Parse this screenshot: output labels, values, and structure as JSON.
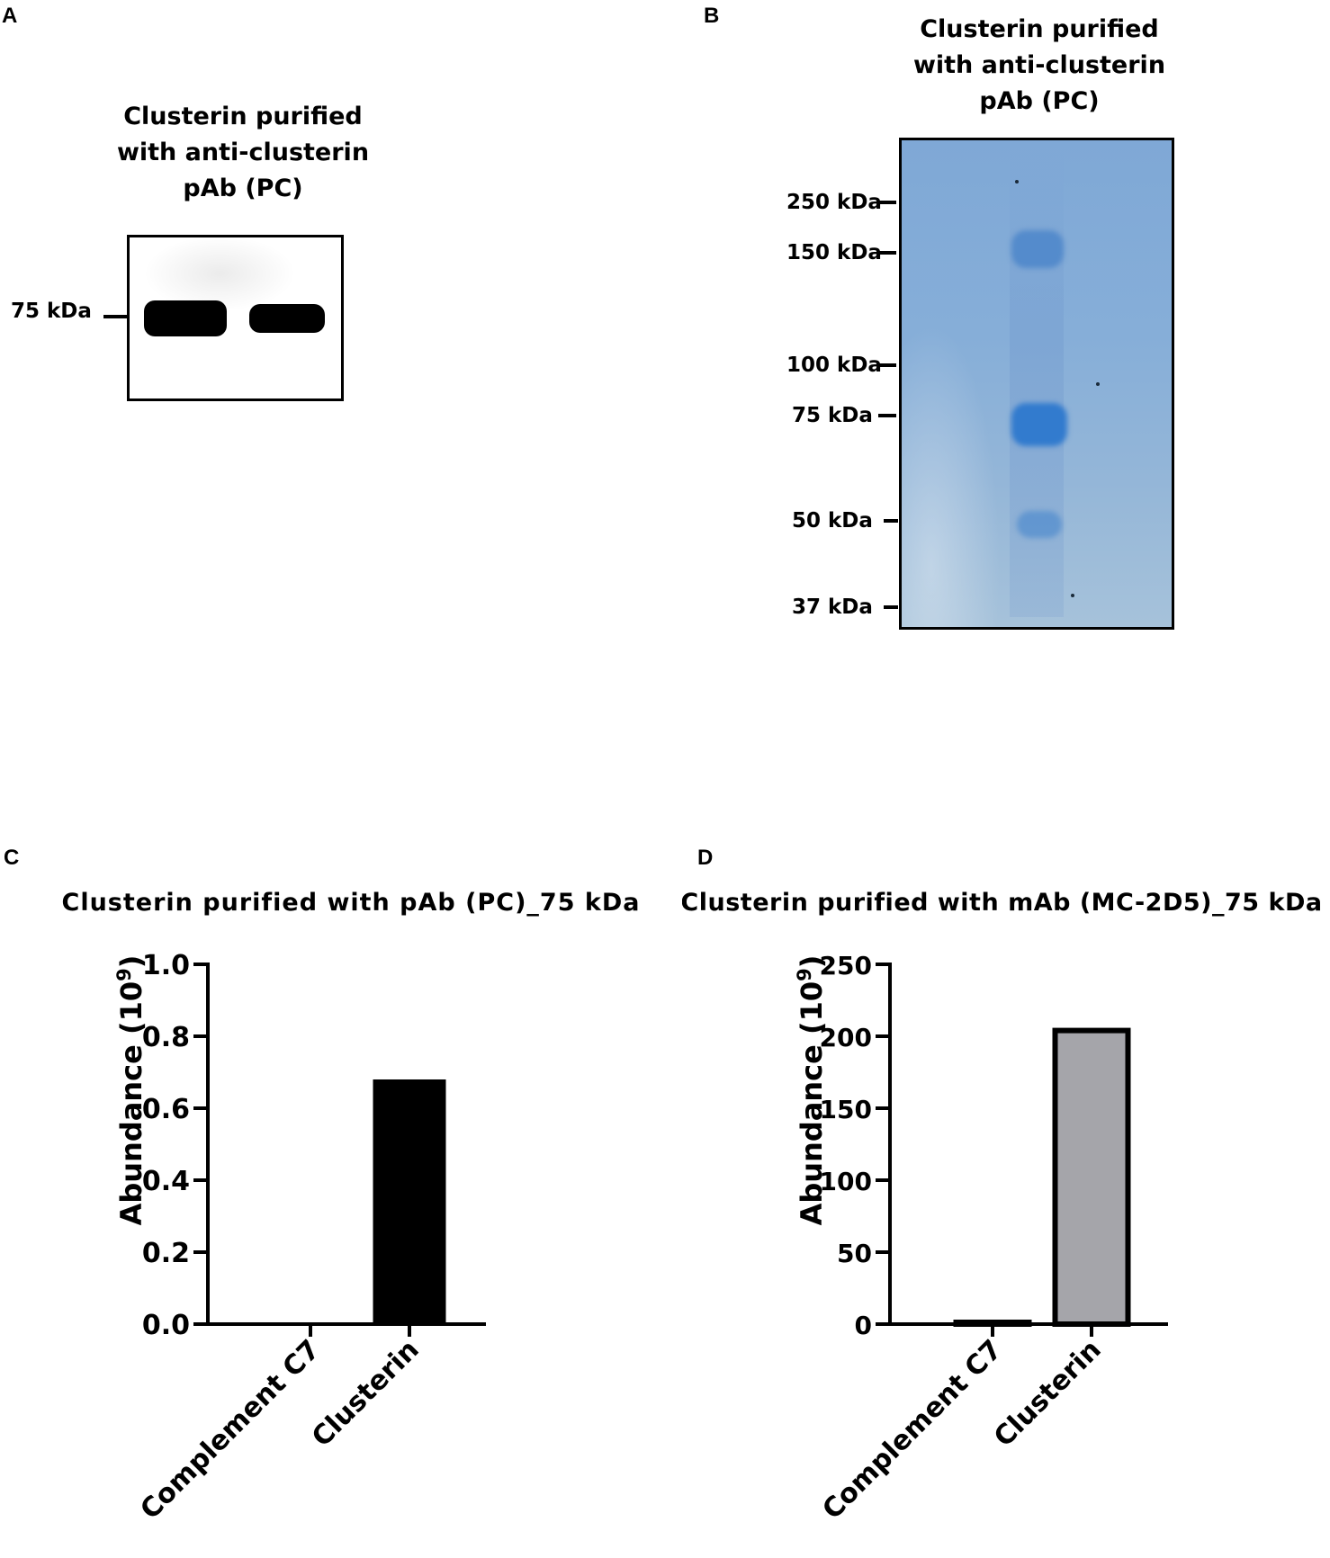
{
  "panels": {
    "a": {
      "letter": "A",
      "title_lines": [
        "Clusterin purified",
        "with anti-clusterin",
        "pAb (PC)"
      ],
      "marker": "75 kDa"
    },
    "b": {
      "letter": "B",
      "title_lines": [
        "Clusterin purified",
        "with anti-clusterin",
        "pAb (PC)"
      ],
      "markers": [
        "250 kDa",
        "150 kDa",
        "100 kDa",
        "75 kDa",
        "50 kDa",
        "37 kDa"
      ],
      "gel_color": "#86aed8",
      "band_color": "#3f86d0"
    },
    "c": {
      "letter": "C"
    },
    "d": {
      "letter": "D"
    }
  },
  "chart_data": [
    {
      "type": "bar",
      "title": "Clusterin purified with pAb (PC)_75 kDa",
      "ylabel": "Abundance (10",
      "ylabel_sup": "9",
      "ylabel_end": ")",
      "categories": [
        "Complement C7",
        "Clusterin"
      ],
      "values": [
        0.005,
        0.68
      ],
      "ylim": [
        0,
        1.0
      ],
      "yticks": [
        "0.0",
        "0.2",
        "0.4",
        "0.6",
        "0.8",
        "1.0"
      ],
      "bar_color": "#000000",
      "grid": false
    },
    {
      "type": "bar",
      "title": "Clusterin purified with mAb (MC-2D5)_75 kDa",
      "ylabel": "Abundance (10",
      "ylabel_sup": "9",
      "ylabel_end": ")",
      "categories": [
        "Complement C7",
        "Clusterin"
      ],
      "values": [
        0.5,
        204
      ],
      "ylim": [
        0,
        250
      ],
      "yticks": [
        "0",
        "50",
        "100",
        "150",
        "200",
        "250"
      ],
      "bar_color": "#a5a5aa",
      "grid": false
    }
  ]
}
